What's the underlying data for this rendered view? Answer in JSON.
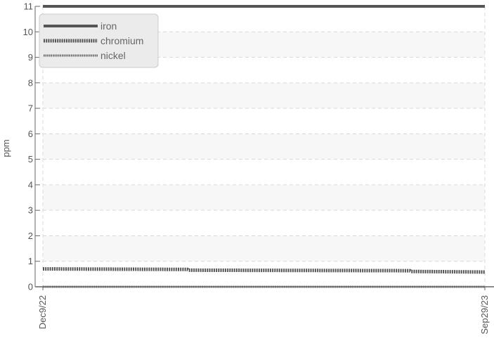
{
  "chart_data": {
    "type": "line",
    "xlabel": "",
    "ylabel": "ppm",
    "ylim": [
      0,
      11
    ],
    "yticks": [
      0,
      1,
      2,
      3,
      4,
      5,
      6,
      7,
      8,
      9,
      10,
      11
    ],
    "x": [
      "2022-12-09",
      "2023-09-29"
    ],
    "xtick_labels": [
      "Dec9/22",
      "Sep29/23"
    ],
    "grid": true,
    "legend_position": "top-left",
    "series": [
      {
        "name": "iron",
        "style": "solid",
        "color": "#555555",
        "x": [
          "2022-12-09",
          "2023-09-29"
        ],
        "values": [
          11,
          11
        ]
      },
      {
        "name": "chromium",
        "style": "dotted-thick",
        "color": "#555555",
        "x": [
          "2022-12-09",
          "2023-03-15",
          "2023-03-16",
          "2023-08-10",
          "2023-08-11",
          "2023-09-29"
        ],
        "values": [
          0.7,
          0.68,
          0.65,
          0.63,
          0.6,
          0.58
        ]
      },
      {
        "name": "nickel",
        "style": "dotted-thin",
        "color": "#666666",
        "x": [
          "2022-12-09",
          "2023-09-29"
        ],
        "values": [
          0,
          0
        ]
      }
    ]
  }
}
